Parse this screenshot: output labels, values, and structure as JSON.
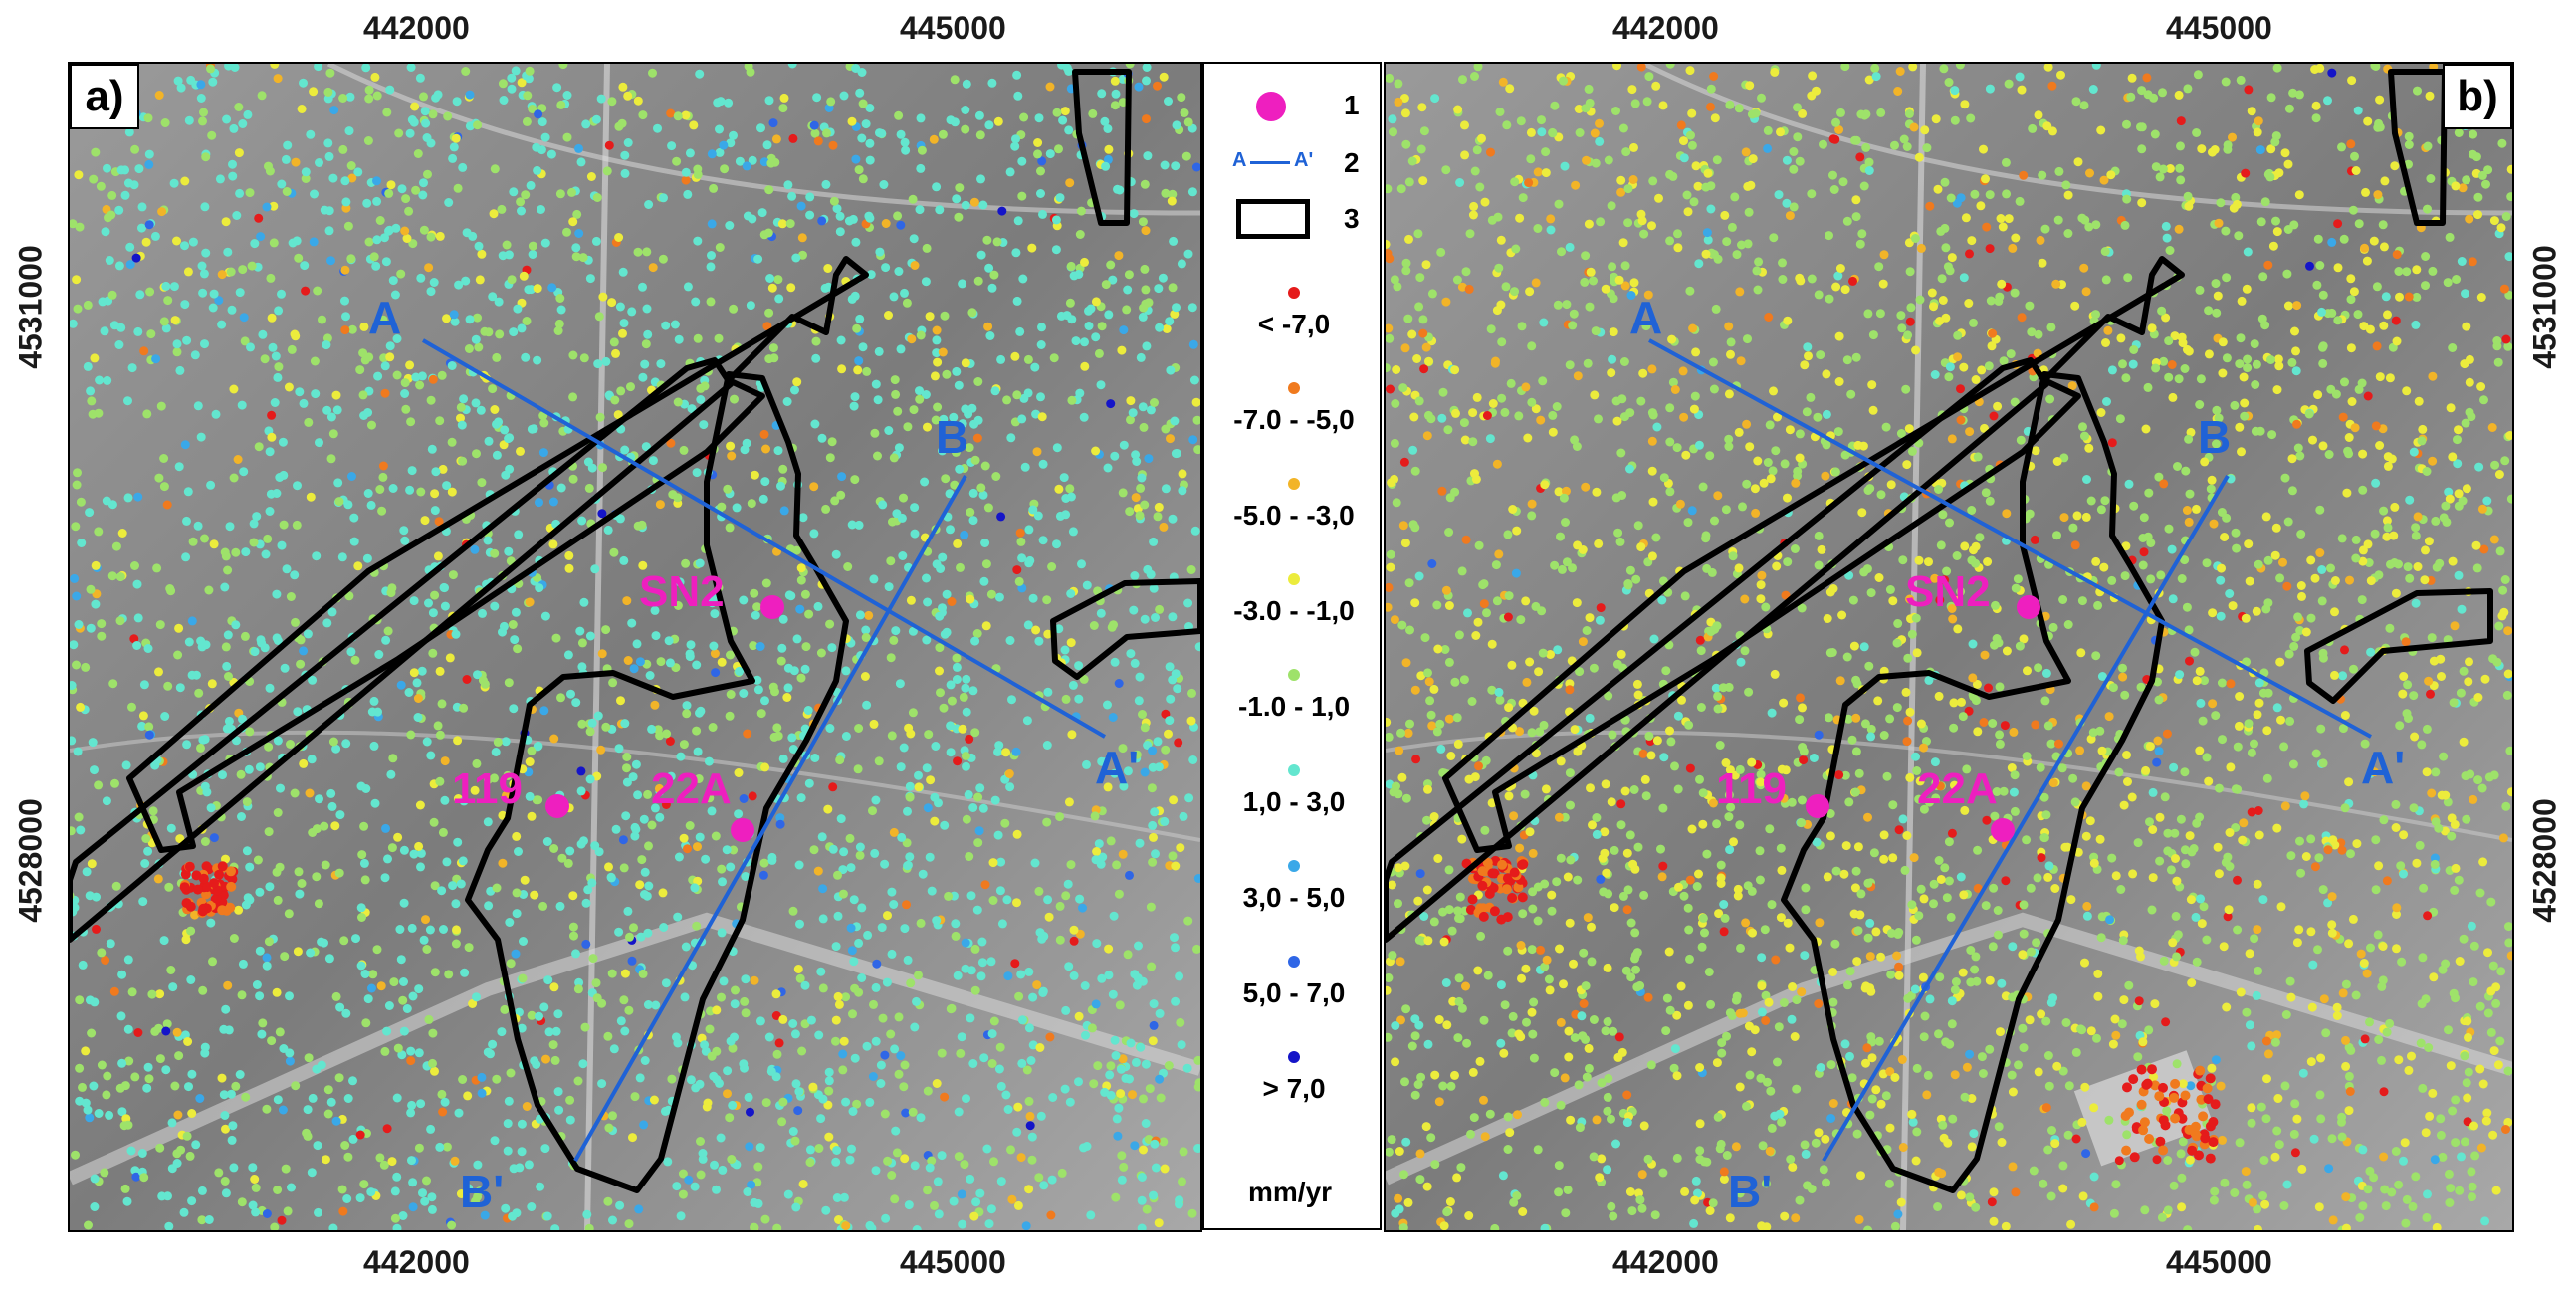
{
  "axes": {
    "x_ticks": [
      "442000",
      "445000"
    ],
    "y_ticks": [
      "4531000",
      "4528000"
    ]
  },
  "panels": [
    {
      "id": "a",
      "tag": "a)"
    },
    {
      "id": "b",
      "tag": "b)"
    }
  ],
  "map_labels": {
    "A": "A",
    "A_prime": "A'",
    "B": "B",
    "B_prime": "B'",
    "wells": [
      "SN2",
      "119",
      "22A"
    ]
  },
  "legend": {
    "items": [
      {
        "num": "1",
        "symbol": "well-point",
        "color": "#ee1fbf"
      },
      {
        "num": "2",
        "symbol": "profile-line",
        "text_a": "A",
        "text_b": "A'",
        "color": "#1f62d6"
      },
      {
        "num": "3",
        "symbol": "area-outline",
        "color": "#000000"
      }
    ],
    "classes": [
      {
        "label": "< -7,0",
        "color": "#e51b1b"
      },
      {
        "label": "-7.0 - -5,0",
        "color": "#f07a1e"
      },
      {
        "label": "-5.0 - -3,0",
        "color": "#f2b428"
      },
      {
        "label": "-3.0 - -1,0",
        "color": "#ecec3c"
      },
      {
        "label": "-1.0 - 1,0",
        "color": "#9ee26a"
      },
      {
        "label": "1,0 - 3,0",
        "color": "#63e6cf"
      },
      {
        "label": "3,0 - 5,0",
        "color": "#3aa8e8"
      },
      {
        "label": "5,0 - 7,0",
        "color": "#2f66e6"
      },
      {
        "label": "> 7,0",
        "color": "#1414c8"
      }
    ],
    "unit": "mm/yr"
  },
  "colors": {
    "well": "#ee1fbf",
    "profile": "#1f62d6",
    "outline": "#000000"
  }
}
